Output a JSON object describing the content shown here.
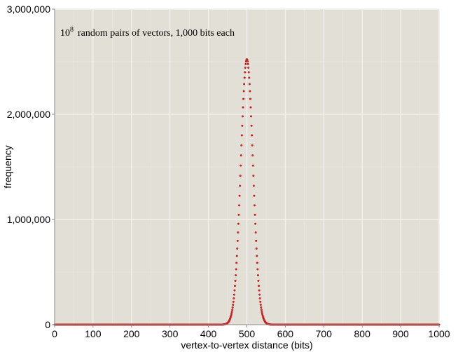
{
  "chart_data": {
    "type": "scatter",
    "title": "",
    "annotation": {
      "base": "10",
      "exponent": "8",
      "text": "random pairs of vectors, 1,000 bits each"
    },
    "xlabel": "vertex-to-vertex distance (bits)",
    "ylabel": "frequency",
    "xlim": [
      0,
      1000
    ],
    "ylim": [
      0,
      3000000
    ],
    "x_ticks": [
      0,
      100,
      200,
      300,
      400,
      500,
      600,
      700,
      800,
      900,
      1000
    ],
    "x_tick_labels": [
      "0",
      "100",
      "200",
      "300",
      "400",
      "500",
      "600",
      "700",
      "800",
      "900",
      "1000"
    ],
    "y_ticks": [
      0,
      1000000,
      2000000,
      3000000
    ],
    "y_tick_labels": [
      "0",
      "1,000,000",
      "2,000,000",
      "3,000,000"
    ],
    "grid": true,
    "colors": {
      "plot_background": "#e2dfd6",
      "grid": "#f2f0ea",
      "marker": "#cc2222"
    },
    "series": [
      {
        "distribution": "binomial",
        "n": 1000,
        "p": 0.5,
        "total_samples": 100000000,
        "peak_x": 500,
        "peak_y": 2523000
      }
    ]
  }
}
